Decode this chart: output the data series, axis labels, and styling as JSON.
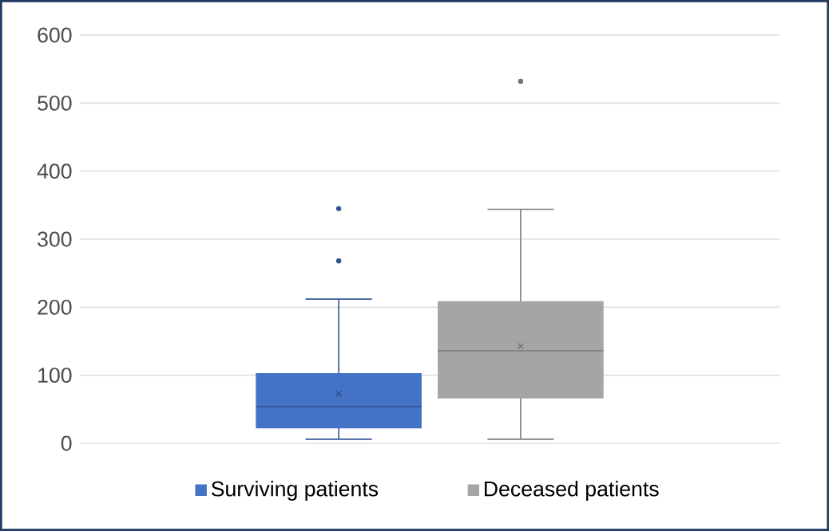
{
  "chart_data": {
    "type": "box",
    "categories": [
      null
    ],
    "ylim": [
      0,
      600
    ],
    "yticks": [
      0,
      100,
      200,
      300,
      400,
      500,
      600
    ],
    "grid": "y",
    "legend": "bottom",
    "tick_labels": "y",
    "series": [
      {
        "name": "Surviving patients",
        "color": "#4472c4",
        "boxes": [
          {
            "low": 6,
            "q1": 22,
            "median": 54,
            "q3": 103,
            "high": 212,
            "mean": 73,
            "outliers": [
              268,
              345
            ]
          }
        ]
      },
      {
        "name": "Deceased patients",
        "color": "#a5a5a5",
        "boxes": [
          {
            "low": 6,
            "q1": 66,
            "median": 136,
            "q3": 209,
            "high": 344,
            "mean": 143,
            "outliers": [
              532
            ]
          }
        ]
      }
    ]
  }
}
